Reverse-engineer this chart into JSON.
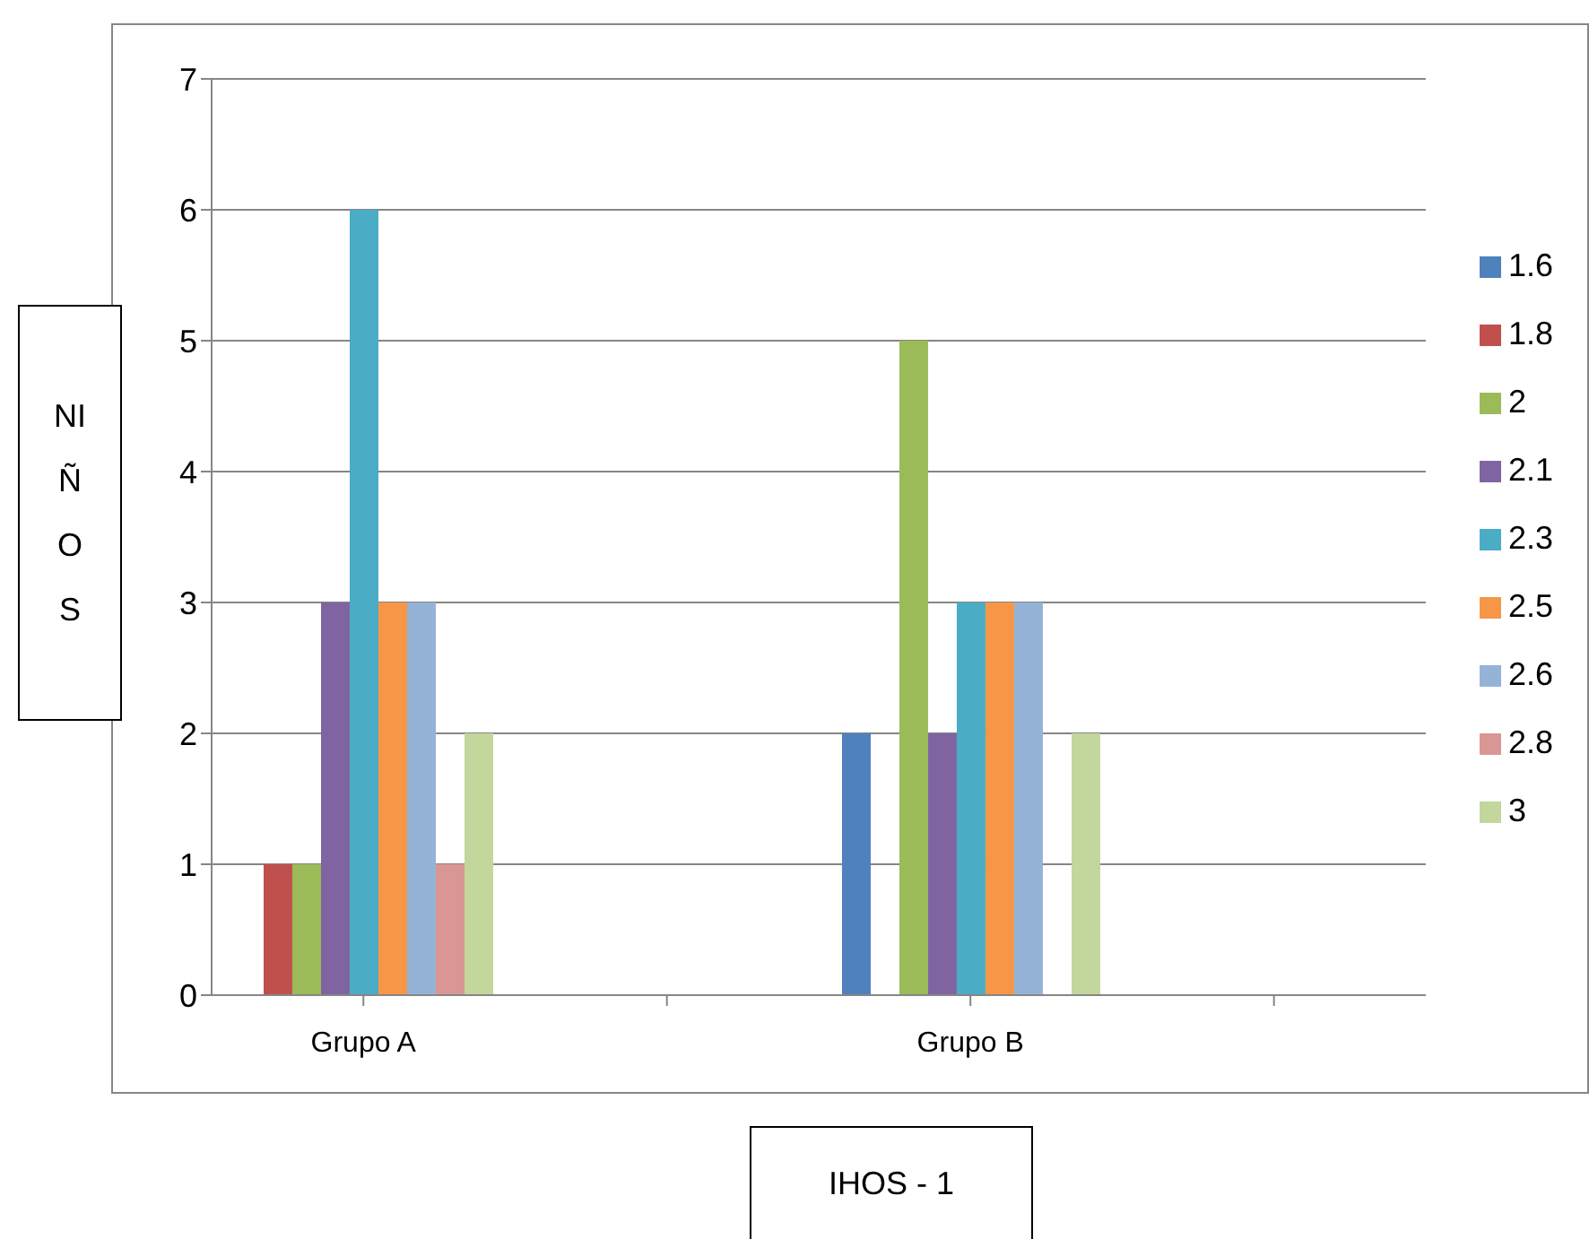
{
  "chart_data": {
    "type": "bar",
    "xlabel": "IHOS - 1",
    "ylabel": "NIÑOS",
    "categories": [
      "Grupo A",
      null,
      "Grupo B",
      null
    ],
    "series": [
      {
        "name": "1.6",
        "color": "#4f81bd",
        "values": [
          0,
          null,
          2,
          null
        ]
      },
      {
        "name": "1.8",
        "color": "#c0504d",
        "values": [
          1,
          null,
          0,
          null
        ]
      },
      {
        "name": "2",
        "color": "#9bbb59",
        "values": [
          1,
          null,
          5,
          null
        ]
      },
      {
        "name": "2.1",
        "color": "#8064a2",
        "values": [
          3,
          null,
          2,
          null
        ]
      },
      {
        "name": "2.3",
        "color": "#4bacc6",
        "values": [
          6,
          null,
          3,
          null
        ]
      },
      {
        "name": "2.5",
        "color": "#f79646",
        "values": [
          3,
          null,
          3,
          null
        ]
      },
      {
        "name": "2.6",
        "color": "#95b3d7",
        "values": [
          3,
          null,
          3,
          null
        ]
      },
      {
        "name": "2.8",
        "color": "#d99694",
        "values": [
          1,
          null,
          0,
          null
        ]
      },
      {
        "name": "3",
        "color": "#c3d69b",
        "values": [
          2,
          null,
          2,
          null
        ]
      }
    ],
    "ylim": [
      0,
      7
    ],
    "yticks": [
      0,
      1,
      2,
      3,
      4,
      5,
      6,
      7
    ],
    "grid": "y",
    "legend": "right"
  }
}
